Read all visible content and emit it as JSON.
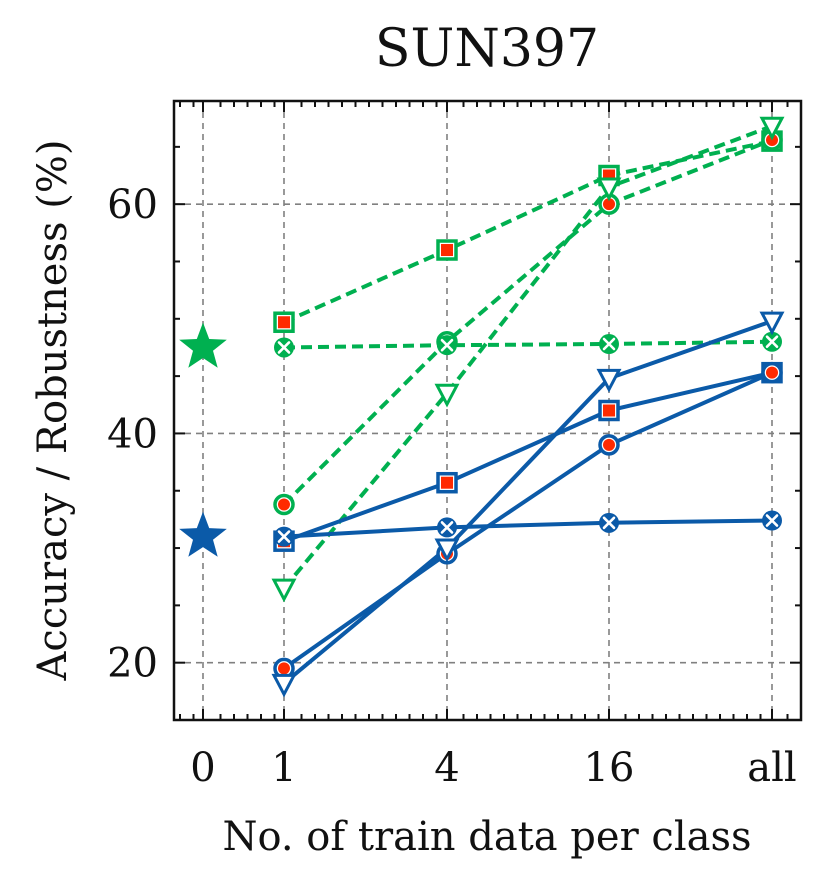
{
  "chart_data": {
    "type": "line",
    "title": "SUN397",
    "xlabel": "No. of train data per class",
    "ylabel": "Accuracy / Robustness (%)",
    "categories": [
      "0",
      "1",
      "4",
      "16",
      "all"
    ],
    "ylim": [
      15,
      69
    ],
    "yticks": [
      20,
      40,
      60
    ],
    "grid": true,
    "colors": {
      "green": "#00b050",
      "blue": "#0b5aa8",
      "dot": "#ff2a00"
    },
    "zero_shot": [
      {
        "name": "zero-shot accuracy",
        "group": "green",
        "x": "0",
        "y": 47.5
      },
      {
        "name": "zero-shot robustness",
        "group": "blue",
        "x": "0",
        "y": 31.0
      }
    ],
    "series": [
      {
        "name": "green-square",
        "group": "green",
        "marker": "square",
        "x": [
          "1",
          "4",
          "16",
          "all"
        ],
        "values": [
          49.7,
          56.0,
          62.5,
          65.5
        ]
      },
      {
        "name": "green-circle",
        "group": "green",
        "marker": "circle",
        "x": [
          "1",
          "4",
          "16",
          "all"
        ],
        "values": [
          33.8,
          48.0,
          60.0,
          65.6
        ]
      },
      {
        "name": "green-triangle",
        "group": "green",
        "marker": "triangle",
        "x": [
          "1",
          "4",
          "16",
          "all"
        ],
        "values": [
          26.5,
          43.5,
          61.5,
          66.8
        ]
      },
      {
        "name": "green-x",
        "group": "green",
        "marker": "x",
        "x": [
          "1",
          "4",
          "16",
          "all"
        ],
        "values": [
          47.5,
          47.7,
          47.8,
          48.0
        ]
      },
      {
        "name": "blue-square",
        "group": "blue",
        "marker": "square",
        "x": [
          "1",
          "4",
          "16",
          "all"
        ],
        "values": [
          30.6,
          35.7,
          42.0,
          45.3
        ]
      },
      {
        "name": "blue-circle",
        "group": "blue",
        "marker": "circle",
        "x": [
          "1",
          "4",
          "16",
          "all"
        ],
        "values": [
          19.5,
          29.5,
          39.0,
          45.3
        ]
      },
      {
        "name": "blue-triangle",
        "group": "blue",
        "marker": "triangle",
        "x": [
          "1",
          "4",
          "16",
          "all"
        ],
        "values": [
          18.2,
          30.0,
          44.8,
          49.8
        ]
      },
      {
        "name": "blue-x",
        "group": "blue",
        "marker": "x",
        "x": [
          "1",
          "4",
          "16",
          "all"
        ],
        "values": [
          31.0,
          31.8,
          32.2,
          32.4
        ]
      }
    ]
  }
}
